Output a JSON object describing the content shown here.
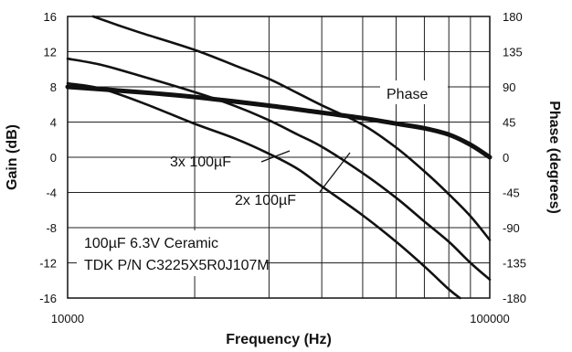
{
  "chart_data": {
    "type": "line",
    "x_scale": "log",
    "xlabel": "Frequency (Hz)",
    "ylabel_left": "Gain (dB)",
    "ylabel_right": "Phase (degrees)",
    "xlim": [
      10000,
      100000
    ],
    "ylim_left": [
      -16,
      16
    ],
    "ylim_right": [
      -180,
      180
    ],
    "x_tick_labels": [
      "10000",
      "100000"
    ],
    "y_left_ticks": [
      "16",
      "12",
      "8",
      "4",
      "0",
      "-4",
      "-8",
      "-12",
      "-16"
    ],
    "y_right_ticks": [
      "180",
      "135",
      "90",
      "45",
      "0",
      "-45",
      "-90",
      "-135",
      "-180"
    ],
    "grid": true,
    "annotations": {
      "phase_label": "Phase",
      "label_3x": "3x 100µF",
      "label_2x": "2x 100µF",
      "note_line1": "100µF 6.3V Ceramic",
      "note_line2": "TDK P/N C3225X5R0J107M"
    },
    "series": [
      {
        "name": "3x 100µF",
        "axis": "gain",
        "x": [
          10000,
          12000,
          15000,
          20000,
          25000,
          30000,
          35000,
          40000,
          50000,
          60000,
          70000,
          80000,
          90000,
          100000
        ],
        "y": [
          11.2,
          10.5,
          9.2,
          7.4,
          5.8,
          4.2,
          2.6,
          1.2,
          -1.8,
          -4.6,
          -7.3,
          -9.6,
          -12.0,
          -13.9
        ]
      },
      {
        "name": "2x 100µF",
        "axis": "gain",
        "x": [
          10000,
          12000,
          15000,
          20000,
          25000,
          30000,
          35000,
          40000,
          50000,
          60000,
          70000,
          80000,
          85000
        ],
        "y": [
          8.4,
          7.8,
          6.2,
          3.8,
          2.1,
          0.4,
          -1.3,
          -3.3,
          -6.6,
          -9.6,
          -12.4,
          -15.0,
          -16.0
        ]
      },
      {
        "name": "Phase",
        "axis": "phase",
        "x": [
          10000,
          15000,
          20000,
          30000,
          40000,
          50000,
          60000,
          70000,
          80000,
          90000,
          100000
        ],
        "y": [
          90,
          83,
          77,
          66,
          57,
          50,
          43,
          37,
          29,
          16,
          0
        ]
      },
      {
        "name": "",
        "axis": "gain",
        "x": [
          11500,
          13000,
          15000,
          20000,
          25000,
          30000,
          35000,
          40000,
          50000,
          60000,
          70000,
          80000,
          90000,
          100000
        ],
        "y": [
          16.0,
          15.1,
          14.1,
          12.2,
          10.4,
          8.9,
          7.3,
          5.9,
          3.7,
          1.1,
          -1.6,
          -4.2,
          -6.7,
          -9.4
        ]
      }
    ]
  }
}
